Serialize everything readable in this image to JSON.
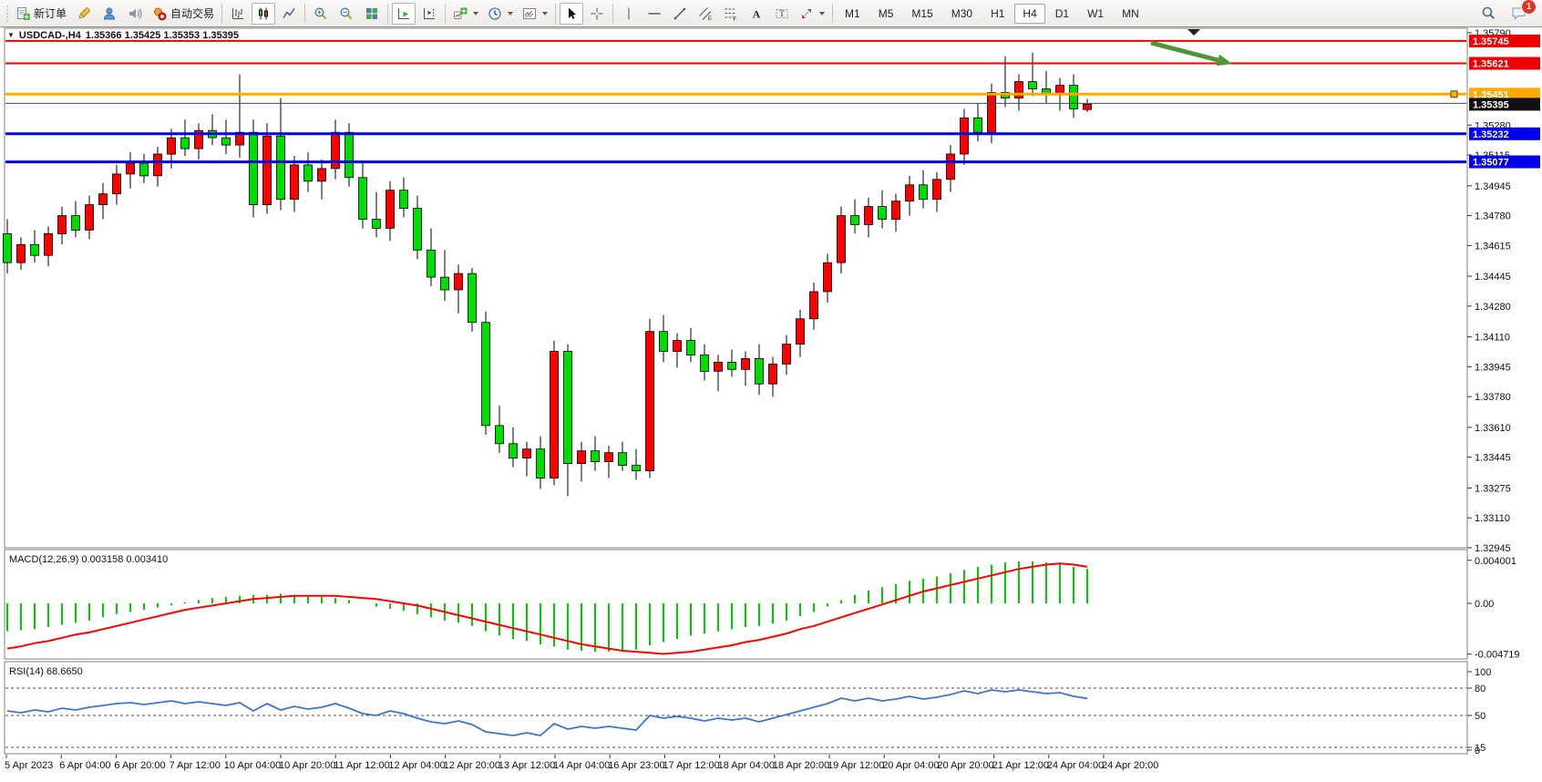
{
  "toolbar": {
    "new_order_label": "新订单",
    "auto_trading_label": "自动交易",
    "timeframes": [
      "M1",
      "M5",
      "M15",
      "M30",
      "H1",
      "H4",
      "D1",
      "W1",
      "MN"
    ],
    "active_timeframe": "H4",
    "badge_count": "1"
  },
  "symbol_header": {
    "title": "USDCAD-,H4",
    "ohlc_text": "1.35366 1.35425 1.35353 1.35395"
  },
  "chart_data": [
    {
      "type": "candlestick",
      "panel": "main",
      "symbol": "USDCAD",
      "timeframe": "H4",
      "up_color": "#ff0000",
      "down_color": "#00dd00",
      "ohlc": [
        [
          1.3468,
          1.3476,
          1.3446,
          1.3452
        ],
        [
          1.3452,
          1.3466,
          1.3448,
          1.3462
        ],
        [
          1.3462,
          1.347,
          1.3452,
          1.3456
        ],
        [
          1.3456,
          1.3472,
          1.345,
          1.3468
        ],
        [
          1.3468,
          1.3483,
          1.3462,
          1.3478
        ],
        [
          1.3478,
          1.3486,
          1.3466,
          1.347
        ],
        [
          1.347,
          1.3489,
          1.3465,
          1.3484
        ],
        [
          1.3484,
          1.3496,
          1.3476,
          1.349
        ],
        [
          1.349,
          1.3506,
          1.3484,
          1.3501
        ],
        [
          1.3501,
          1.3513,
          1.3493,
          1.3507
        ],
        [
          1.3507,
          1.3512,
          1.3496,
          1.35
        ],
        [
          1.35,
          1.3516,
          1.3494,
          1.3512
        ],
        [
          1.3512,
          1.3526,
          1.3504,
          1.3521
        ],
        [
          1.3521,
          1.3531,
          1.3511,
          1.3515
        ],
        [
          1.3515,
          1.3529,
          1.3509,
          1.3525
        ],
        [
          1.3525,
          1.3534,
          1.3517,
          1.3521
        ],
        [
          1.3521,
          1.3531,
          1.3512,
          1.3517
        ],
        [
          1.3517,
          1.3556,
          1.351,
          1.3524
        ],
        [
          1.3524,
          1.3531,
          1.3477,
          1.3484
        ],
        [
          1.3484,
          1.3529,
          1.3479,
          1.3522
        ],
        [
          1.3522,
          1.3543,
          1.3481,
          1.3487
        ],
        [
          1.3487,
          1.3511,
          1.348,
          1.3506
        ],
        [
          1.3506,
          1.3513,
          1.3491,
          1.3497
        ],
        [
          1.3497,
          1.3509,
          1.3487,
          1.3504
        ],
        [
          1.3504,
          1.3531,
          1.3498,
          1.3524
        ],
        [
          1.3524,
          1.3529,
          1.3494,
          1.3499
        ],
        [
          1.3499,
          1.3507,
          1.3471,
          1.3476
        ],
        [
          1.3476,
          1.3491,
          1.3466,
          1.3471
        ],
        [
          1.3471,
          1.3497,
          1.3464,
          1.3492
        ],
        [
          1.3492,
          1.3499,
          1.3477,
          1.3482
        ],
        [
          1.3482,
          1.3489,
          1.3454,
          1.3459
        ],
        [
          1.3459,
          1.3471,
          1.3439,
          1.3444
        ],
        [
          1.3444,
          1.3459,
          1.3431,
          1.3437
        ],
        [
          1.3437,
          1.3451,
          1.3424,
          1.3446
        ],
        [
          1.3446,
          1.3449,
          1.3414,
          1.3419
        ],
        [
          1.3419,
          1.3425,
          1.3357,
          1.3362
        ],
        [
          1.3362,
          1.3373,
          1.3347,
          1.3352
        ],
        [
          1.3352,
          1.3361,
          1.3339,
          1.3344
        ],
        [
          1.3344,
          1.3353,
          1.3334,
          1.3349
        ],
        [
          1.3349,
          1.3356,
          1.3327,
          1.3333
        ],
        [
          1.3333,
          1.3409,
          1.3329,
          1.3403
        ],
        [
          1.3403,
          1.3407,
          1.3323,
          1.3341
        ],
        [
          1.3341,
          1.3353,
          1.3331,
          1.3348
        ],
        [
          1.3348,
          1.3356,
          1.3337,
          1.3342
        ],
        [
          1.3342,
          1.3351,
          1.3333,
          1.3347
        ],
        [
          1.3347,
          1.3353,
          1.3337,
          1.334
        ],
        [
          1.334,
          1.3349,
          1.3332,
          1.3337
        ],
        [
          1.3337,
          1.3421,
          1.3333,
          1.3414
        ],
        [
          1.3414,
          1.3423,
          1.3397,
          1.3403
        ],
        [
          1.3403,
          1.3413,
          1.3394,
          1.3409
        ],
        [
          1.3409,
          1.3416,
          1.3397,
          1.3401
        ],
        [
          1.3401,
          1.3407,
          1.3387,
          1.3392
        ],
        [
          1.3392,
          1.3401,
          1.3381,
          1.3397
        ],
        [
          1.3397,
          1.3404,
          1.3389,
          1.3393
        ],
        [
          1.3393,
          1.3403,
          1.3384,
          1.3399
        ],
        [
          1.3399,
          1.3407,
          1.3379,
          1.3385
        ],
        [
          1.3385,
          1.34,
          1.3378,
          1.3396
        ],
        [
          1.3396,
          1.3412,
          1.339,
          1.3407
        ],
        [
          1.3407,
          1.3426,
          1.34,
          1.3421
        ],
        [
          1.3421,
          1.3441,
          1.3415,
          1.3436
        ],
        [
          1.3436,
          1.3457,
          1.343,
          1.3452
        ],
        [
          1.3452,
          1.3483,
          1.3446,
          1.3478
        ],
        [
          1.3478,
          1.3487,
          1.3468,
          1.3473
        ],
        [
          1.3473,
          1.3488,
          1.3466,
          1.3483
        ],
        [
          1.3483,
          1.3492,
          1.3471,
          1.3476
        ],
        [
          1.3476,
          1.349,
          1.3469,
          1.3486
        ],
        [
          1.3486,
          1.35,
          1.3478,
          1.3495
        ],
        [
          1.3495,
          1.3503,
          1.3482,
          1.3487
        ],
        [
          1.3487,
          1.3502,
          1.348,
          1.3498
        ],
        [
          1.3498,
          1.3517,
          1.3491,
          1.3512
        ],
        [
          1.3512,
          1.3537,
          1.3506,
          1.3532
        ],
        [
          1.3532,
          1.354,
          1.3519,
          1.3524
        ],
        [
          1.3524,
          1.3551,
          1.3518,
          1.3546
        ],
        [
          1.3546,
          1.3566,
          1.3538,
          1.3543
        ],
        [
          1.3543,
          1.3556,
          1.3536,
          1.3552
        ],
        [
          1.3552,
          1.3568,
          1.3544,
          1.3548
        ],
        [
          1.3548,
          1.3558,
          1.354,
          1.3545
        ],
        [
          1.3545,
          1.3554,
          1.3536,
          1.355
        ],
        [
          1.355,
          1.3556,
          1.3532,
          1.3537
        ],
        [
          1.35366,
          1.35425,
          1.35353,
          1.35395
        ]
      ],
      "y_ticks": [
        "1.35790",
        "1.35280",
        "1.35115",
        "1.34945",
        "1.34780",
        "1.34615",
        "1.34445",
        "1.34280",
        "1.34110",
        "1.33945",
        "1.33780",
        "1.33610",
        "1.33445",
        "1.33275",
        "1.33110",
        "1.32945"
      ],
      "price_badges": [
        {
          "value": "1.35745",
          "color": "#ee0000"
        },
        {
          "value": "1.35621",
          "color": "#ee0000"
        },
        {
          "value": "1.35451",
          "color": "#ffaa00"
        },
        {
          "value": "1.35395",
          "color": "#101010"
        },
        {
          "value": "1.35232",
          "color": "#0000ee"
        },
        {
          "value": "1.35077",
          "color": "#0000ee"
        }
      ],
      "hlines": [
        {
          "price": 1.35745,
          "color": "#ee0000",
          "width": 2
        },
        {
          "price": 1.35621,
          "color": "#ee0000",
          "width": 2
        },
        {
          "price": 1.35451,
          "color": "#ffaa00",
          "width": 3,
          "selected": true
        },
        {
          "price": 1.354,
          "color": "#4a4a4a",
          "width": 1
        },
        {
          "price": 1.35232,
          "color": "#0000ee",
          "width": 3
        },
        {
          "price": 1.35077,
          "color": "#0000ee",
          "width": 3
        }
      ],
      "annotations": {
        "arrow": {
          "from": [
            1263,
            47
          ],
          "to": [
            1352,
            70
          ],
          "color": "#4d9636"
        },
        "shift_marker_x": 1310
      },
      "x_labels": [
        "5 Apr 2023",
        "6 Apr 04:00",
        "6 Apr 20:00",
        "7 Apr 12:00",
        "10 Apr 04:00",
        "10 Apr 20:00",
        "11 Apr 12:00",
        "12 Apr 04:00",
        "12 Apr 20:00",
        "13 Apr 12:00",
        "14 Apr 04:00",
        "16 Apr 23:00",
        "17 Apr 12:00",
        "18 Apr 04:00",
        "18 Apr 20:00",
        "19 Apr 12:00",
        "20 Apr 04:00",
        "20 Apr 20:00",
        "21 Apr 12:00",
        "24 Apr 04:00",
        "24 Apr 20:00"
      ]
    },
    {
      "type": "macd",
      "label": "MACD(12,26,9) 0.003158 0.003410",
      "params": "12,26,9",
      "value": "0.003158",
      "signal_value": "0.003410",
      "hist_color": "#00cc00",
      "signal_color": "#ff0000",
      "y_ticks": [
        "0.004001",
        "0.00",
        "-0.004719"
      ],
      "histogram": [
        -0.0026,
        -0.0025,
        -0.0024,
        -0.0022,
        -0.002,
        -0.0018,
        -0.0016,
        -0.0013,
        -0.001,
        -0.0008,
        -0.0006,
        -0.0004,
        -0.0002,
        0.0001,
        0.0003,
        0.0005,
        0.0006,
        0.0007,
        0.0008,
        0.0008,
        0.0009,
        0.0008,
        0.0007,
        0.0006,
        0.0005,
        0.0003,
        0.0,
        -0.0003,
        -0.0005,
        -0.0007,
        -0.001,
        -0.0013,
        -0.0016,
        -0.0018,
        -0.0021,
        -0.0026,
        -0.003,
        -0.0033,
        -0.0035,
        -0.0038,
        -0.004,
        -0.0043,
        -0.0044,
        -0.0045,
        -0.0045,
        -0.0044,
        -0.0043,
        -0.0039,
        -0.0036,
        -0.0033,
        -0.003,
        -0.0028,
        -0.0026,
        -0.0024,
        -0.0022,
        -0.0021,
        -0.0019,
        -0.0016,
        -0.0012,
        -0.0008,
        -0.0003,
        0.0003,
        0.0008,
        0.0012,
        0.0015,
        0.0018,
        0.0021,
        0.0023,
        0.0025,
        0.0028,
        0.0031,
        0.0034,
        0.0036,
        0.0038,
        0.0039,
        0.0039,
        0.0038,
        0.0036,
        0.0034,
        0.0032
      ],
      "signal": [
        -0.0042,
        -0.004,
        -0.0037,
        -0.0035,
        -0.0032,
        -0.0029,
        -0.0027,
        -0.0024,
        -0.0021,
        -0.0018,
        -0.0015,
        -0.0012,
        -0.0009,
        -0.0006,
        -0.0004,
        -0.0002,
        0.0,
        0.0002,
        0.0004,
        0.0005,
        0.0006,
        0.0007,
        0.0007,
        0.0007,
        0.0007,
        0.0006,
        0.0005,
        0.0004,
        0.0002,
        0.0,
        -0.0002,
        -0.0005,
        -0.0008,
        -0.0011,
        -0.0014,
        -0.0017,
        -0.002,
        -0.0023,
        -0.0026,
        -0.0029,
        -0.0032,
        -0.0035,
        -0.0038,
        -0.004,
        -0.0042,
        -0.0044,
        -0.0045,
        -0.0046,
        -0.0047,
        -0.0046,
        -0.0045,
        -0.0043,
        -0.0041,
        -0.0039,
        -0.0036,
        -0.0034,
        -0.0031,
        -0.0028,
        -0.0024,
        -0.0021,
        -0.0017,
        -0.0013,
        -0.0009,
        -0.0005,
        -0.0001,
        0.0003,
        0.0007,
        0.0011,
        0.0014,
        0.0017,
        0.002,
        0.0023,
        0.0026,
        0.0029,
        0.0032,
        0.0034,
        0.0036,
        0.0037,
        0.0036,
        0.0034
      ]
    },
    {
      "type": "rsi",
      "label": "RSI(14) 68.6650",
      "period": "14",
      "value": "68.6650",
      "line_color": "#3d74cc",
      "levels": [
        80,
        50,
        15
      ],
      "y_ticks": [
        "100",
        "80",
        "50",
        "15",
        "0"
      ],
      "values": [
        55,
        53,
        56,
        54,
        58,
        56,
        59,
        61,
        63,
        64,
        62,
        64,
        66,
        63,
        65,
        63,
        61,
        64,
        55,
        63,
        56,
        60,
        57,
        59,
        63,
        58,
        52,
        50,
        55,
        52,
        47,
        43,
        41,
        44,
        40,
        32,
        30,
        28,
        31,
        28,
        41,
        35,
        38,
        36,
        38,
        36,
        34,
        50,
        47,
        49,
        47,
        44,
        47,
        45,
        47,
        43,
        47,
        51,
        55,
        59,
        63,
        69,
        66,
        69,
        66,
        68,
        71,
        68,
        70,
        73,
        77,
        74,
        78,
        76,
        78,
        76,
        74,
        75,
        71,
        68.665
      ]
    }
  ]
}
